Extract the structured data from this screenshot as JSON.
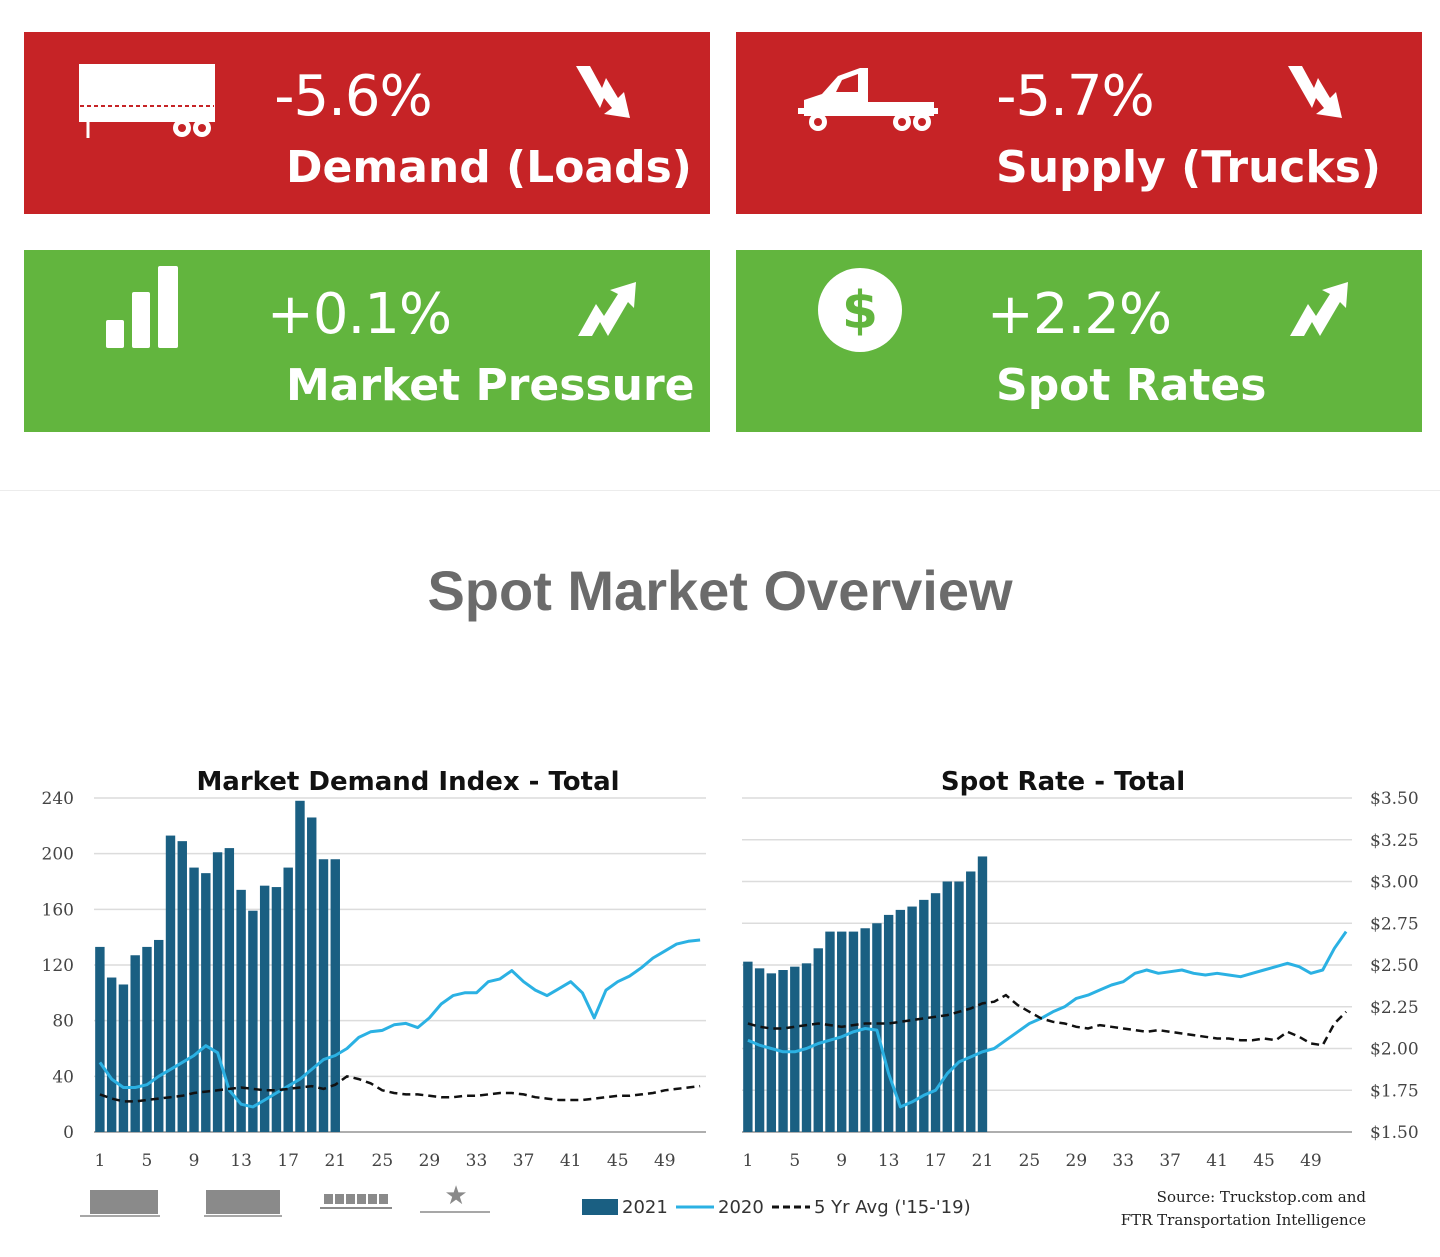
{
  "cards": [
    {
      "value": "-5.6%",
      "label": "Demand (Loads)",
      "color": "#c62326",
      "icon": "trailer-icon",
      "trend": "down-arrow-icon"
    },
    {
      "value": "-5.7%",
      "label": "Supply (Trucks)",
      "color": "#c62326",
      "icon": "truck-icon",
      "trend": "down-arrow-icon"
    },
    {
      "value": "+0.1%",
      "label": "Market Pressure",
      "color": "#62b53e",
      "icon": "bar-chart-icon",
      "trend": "up-arrow-icon"
    },
    {
      "value": "+2.2%",
      "label": "Spot Rates",
      "color": "#62b53e",
      "icon": "dollar-icon",
      "trend": "up-arrow-icon"
    }
  ],
  "section_title": "Spot Market Overview",
  "legend": {
    "s2021": "2021",
    "s2020": "2020",
    "avg": "5 Yr Avg ('15-'19)"
  },
  "source": [
    "Source: Truckstop.com and",
    "FTR Transportation Intelligence"
  ],
  "colors": {
    "bar2021": "#1a5f82",
    "line2020": "#2bb1e3",
    "avg": "#111111",
    "grid": "#dcdcdc"
  },
  "chart_data": [
    {
      "type": "bar",
      "title": "Market Demand Index - Total",
      "x_ticks": [
        "1",
        "5",
        "9",
        "13",
        "17",
        "21",
        "25",
        "29",
        "33",
        "37",
        "41",
        "45",
        "49"
      ],
      "y_ticks": [
        "0",
        "40",
        "80",
        "120",
        "160",
        "200",
        "240"
      ],
      "ylim": [
        0,
        240
      ],
      "weeks": 52,
      "series": [
        {
          "name": "2021",
          "type": "bar",
          "values": [
            133,
            111,
            106,
            127,
            133,
            138,
            213,
            209,
            190,
            186,
            201,
            204,
            174,
            159,
            177,
            176,
            190,
            238,
            226,
            196,
            196
          ]
        },
        {
          "name": "2020",
          "type": "line",
          "values": [
            50,
            38,
            32,
            32,
            34,
            40,
            45,
            50,
            55,
            62,
            57,
            30,
            20,
            18,
            23,
            28,
            33,
            38,
            45,
            52,
            55,
            60,
            68,
            72,
            73,
            77,
            78,
            75,
            82,
            92,
            98,
            100,
            100,
            108,
            110,
            116,
            108,
            102,
            98,
            103,
            108,
            100,
            82,
            102,
            108,
            112,
            118,
            125,
            130,
            135,
            137,
            138
          ]
        },
        {
          "name": "5 Yr Avg ('15-'19)",
          "type": "line",
          "values": [
            27,
            24,
            22,
            22,
            23,
            24,
            25,
            26,
            28,
            29,
            30,
            31,
            32,
            31,
            30,
            30,
            31,
            32,
            33,
            31,
            34,
            40,
            38,
            35,
            30,
            28,
            27,
            27,
            26,
            25,
            25,
            26,
            26,
            27,
            28,
            28,
            27,
            25,
            24,
            23,
            23,
            23,
            24,
            25,
            26,
            26,
            27,
            28,
            30,
            31,
            32,
            33
          ]
        }
      ]
    },
    {
      "type": "bar",
      "title": "Spot Rate - Total",
      "x_ticks": [
        "1",
        "5",
        "9",
        "13",
        "17",
        "21",
        "25",
        "29",
        "33",
        "37",
        "41",
        "45",
        "49"
      ],
      "y_ticks": [
        "$1.50",
        "$1.75",
        "$2.00",
        "$2.25",
        "$2.50",
        "$2.75",
        "$3.00",
        "$3.25",
        "$3.50"
      ],
      "ylim": [
        1.5,
        3.5
      ],
      "weeks": 52,
      "series": [
        {
          "name": "2021",
          "type": "bar",
          "values": [
            2.52,
            2.48,
            2.45,
            2.47,
            2.49,
            2.51,
            2.6,
            2.7,
            2.7,
            2.7,
            2.72,
            2.75,
            2.8,
            2.83,
            2.85,
            2.89,
            2.93,
            3.0,
            3.0,
            3.06,
            3.15
          ]
        },
        {
          "name": "2020",
          "type": "line",
          "values": [
            2.05,
            2.02,
            2.0,
            1.98,
            1.98,
            2.0,
            2.03,
            2.05,
            2.07,
            2.1,
            2.12,
            2.11,
            1.85,
            1.65,
            1.68,
            1.72,
            1.75,
            1.85,
            1.92,
            1.95,
            1.98,
            2.0,
            2.05,
            2.1,
            2.15,
            2.18,
            2.22,
            2.25,
            2.3,
            2.32,
            2.35,
            2.38,
            2.4,
            2.45,
            2.47,
            2.45,
            2.46,
            2.47,
            2.45,
            2.44,
            2.45,
            2.44,
            2.43,
            2.45,
            2.47,
            2.49,
            2.51,
            2.49,
            2.45,
            2.47,
            2.6,
            2.7
          ]
        },
        {
          "name": "5 Yr Avg ('15-'19)",
          "type": "line",
          "values": [
            2.15,
            2.13,
            2.12,
            2.12,
            2.13,
            2.14,
            2.15,
            2.14,
            2.13,
            2.14,
            2.15,
            2.15,
            2.15,
            2.16,
            2.17,
            2.18,
            2.19,
            2.2,
            2.22,
            2.24,
            2.27,
            2.28,
            2.32,
            2.26,
            2.22,
            2.18,
            2.16,
            2.15,
            2.13,
            2.12,
            2.14,
            2.13,
            2.12,
            2.11,
            2.1,
            2.11,
            2.1,
            2.09,
            2.08,
            2.07,
            2.06,
            2.06,
            2.05,
            2.05,
            2.06,
            2.05,
            2.1,
            2.07,
            2.03,
            2.02,
            2.15,
            2.22
          ]
        }
      ]
    }
  ]
}
